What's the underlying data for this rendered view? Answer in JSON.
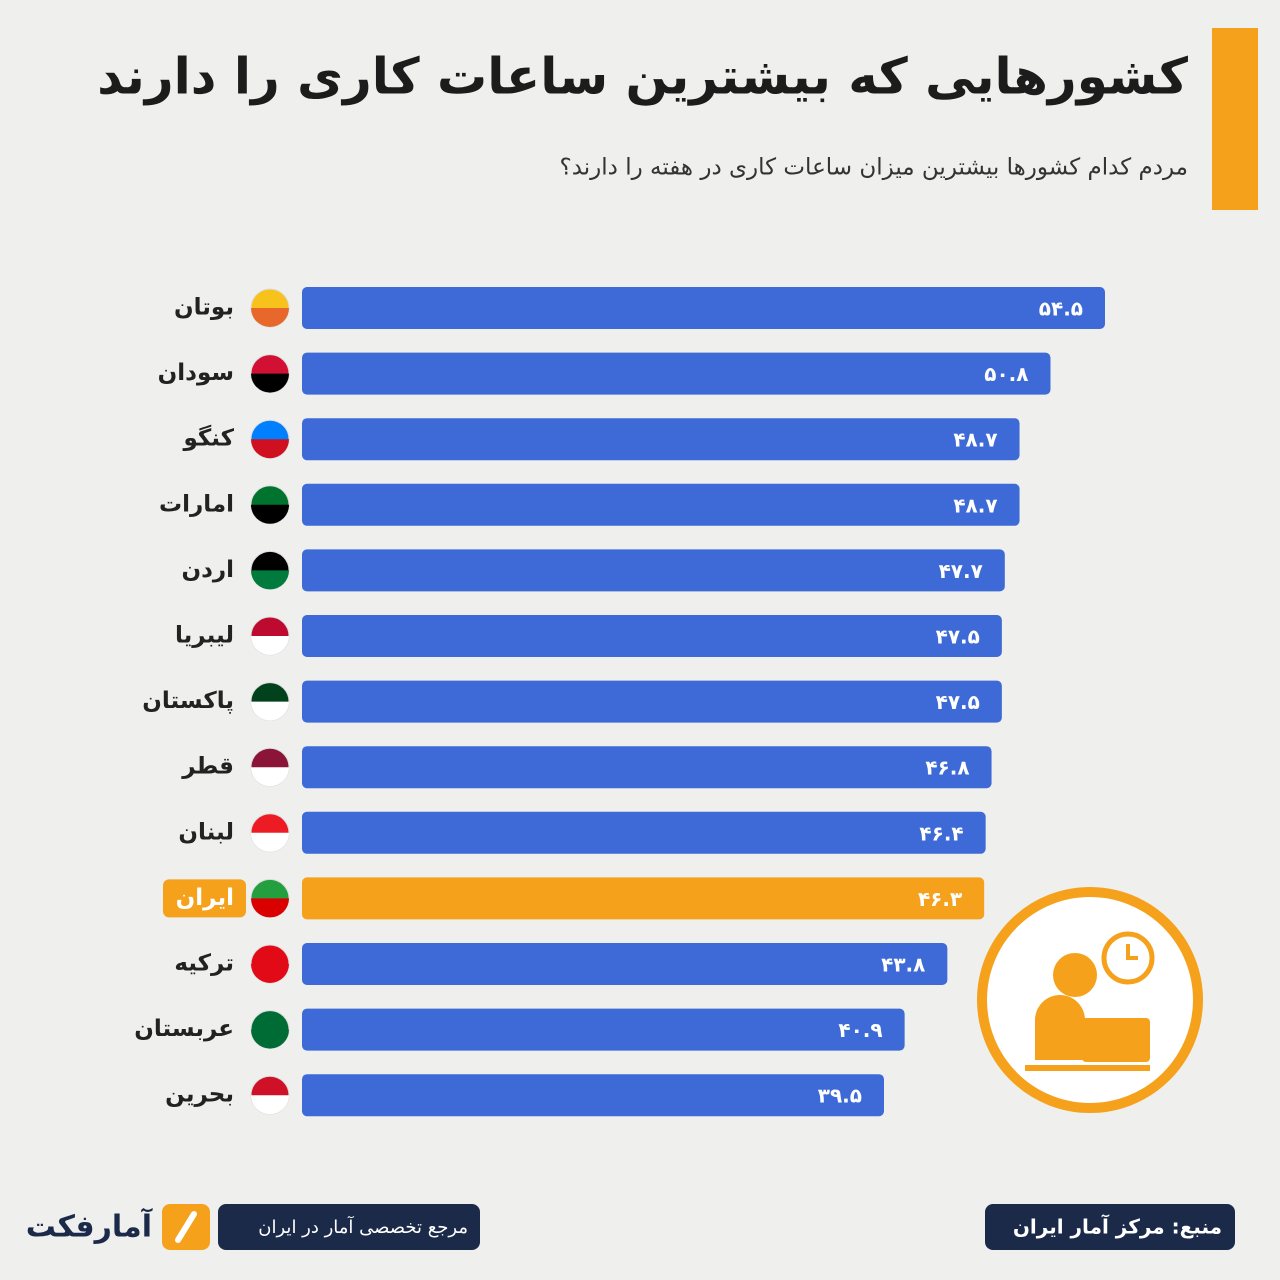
{
  "chart_data": {
    "type": "bar",
    "orientation": "horizontal",
    "title": "کشورهایی که بیشترین ساعات کاری را دارند",
    "subtitle": "مردم کدام کشورها بیشترین میزان ساعات کاری در هفته را دارند؟",
    "categories": [
      "بوتان",
      "سودان",
      "کنگو",
      "امارات",
      "اردن",
      "لیبریا",
      "پاکستان",
      "قطر",
      "لبنان",
      "ایران",
      "ترکیه",
      "عربستان",
      "بحرین"
    ],
    "values": [
      54.5,
      50.8,
      48.7,
      48.7,
      47.7,
      47.5,
      47.5,
      46.8,
      46.4,
      46.3,
      43.8,
      40.9,
      39.5
    ],
    "value_labels": [
      "۵۴.۵",
      "۵۰.۸",
      "۴۸.۷",
      "۴۸.۷",
      "۴۷.۷",
      "۴۷.۵",
      "۴۷.۵",
      "۴۶.۸",
      "۴۶.۴",
      "۴۶.۳",
      "۴۳.۸",
      "۴۰.۹",
      "۳۹.۵"
    ],
    "colors": [
      "#3d6ad6",
      "#3d6ad6",
      "#3d6ad6",
      "#3d6ad6",
      "#3d6ad6",
      "#3d6ad6",
      "#3d6ad6",
      "#3d6ad6",
      "#3d6ad6",
      "#f5a11c",
      "#3d6ad6",
      "#3d6ad6",
      "#3d6ad6"
    ],
    "source": "منبع: مرکز آمار ایران",
    "tagline": "مرجع تخصصی آمار در ایران",
    "brand": "آمارفکت"
  }
}
